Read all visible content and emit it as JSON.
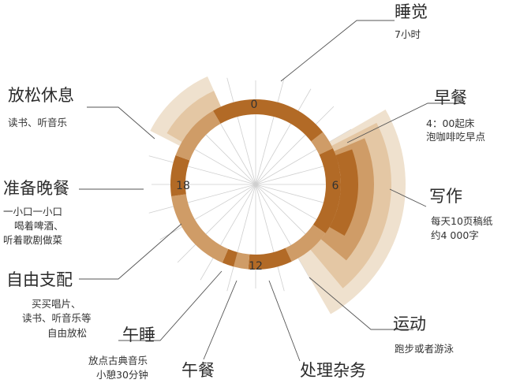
{
  "clock": {
    "hour_labels": {
      "top": "0",
      "right": "6",
      "bottom": "12",
      "left": "18"
    }
  },
  "activities": [
    {
      "id": "sleep",
      "title": "睡觉",
      "desc": [
        "7小时"
      ]
    },
    {
      "id": "breakfast",
      "title": "早餐",
      "desc": [
        "4：00起床",
        "泡咖啡吃早点"
      ]
    },
    {
      "id": "writing",
      "title": "写作",
      "desc": [
        "每天10页稿纸",
        "约4 000字"
      ]
    },
    {
      "id": "exercise",
      "title": "运动",
      "desc": [
        "跑步或者游泳"
      ]
    },
    {
      "id": "chores",
      "title": "处理杂务",
      "desc": []
    },
    {
      "id": "lunch",
      "title": "午餐",
      "desc": []
    },
    {
      "id": "nap",
      "title": "午睡",
      "desc": [
        "放点古典音乐",
        "小憩30分钟"
      ]
    },
    {
      "id": "free",
      "title": "自由支配",
      "desc": [
        "买买唱片、",
        "读书、听音乐等",
        "自由放松"
      ]
    },
    {
      "id": "dinner",
      "title": "准备晚餐",
      "desc": [
        "一小口一小口",
        "喝着啤酒、",
        "听着歌剧做菜"
      ]
    },
    {
      "id": "relax",
      "title": "放松休息",
      "desc": [
        "读书、听音乐"
      ]
    }
  ],
  "colors": {
    "dark": "#b26a26",
    "mid": "#cf9c67",
    "light": "#e4c7a4",
    "pale": "#efe1ce",
    "spoke": "#cfcfcf"
  }
}
